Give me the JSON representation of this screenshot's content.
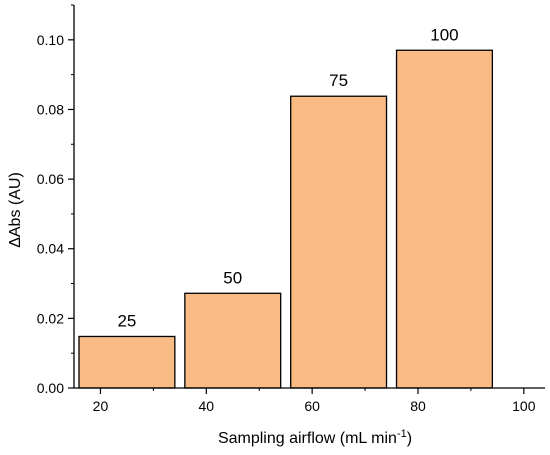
{
  "chart_data": {
    "type": "bar",
    "categories": [
      "20",
      "40",
      "60",
      "80",
      "100"
    ],
    "bars": [
      {
        "x_start": 15,
        "x_end": 35,
        "value": 0.0148,
        "label": "25"
      },
      {
        "x_start": 35,
        "x_end": 55,
        "value": 0.0272,
        "label": "50"
      },
      {
        "x_start": 55,
        "x_end": 75,
        "value": 0.0838,
        "label": "75"
      },
      {
        "x_start": 75,
        "x_end": 95,
        "value": 0.097,
        "label": "100"
      }
    ],
    "x_ticks": [
      "20",
      "40",
      "60",
      "80",
      "100"
    ],
    "y_ticks": [
      "0.00",
      "0.02",
      "0.04",
      "0.06",
      "0.08",
      "0.10"
    ],
    "xlim": [
      15,
      104
    ],
    "ylim": [
      0,
      0.11
    ],
    "xlabel": "Sampling airflow (mL min",
    "xlabel_superscript": "-1",
    "xlabel_suffix": ")",
    "ylabel": "ΔAbs (AU)",
    "title": "",
    "colors": {
      "bar_fill": "#f8bb84",
      "bar_stroke": "#000000",
      "axis": "#000000"
    },
    "grid": false,
    "legend": "none"
  }
}
